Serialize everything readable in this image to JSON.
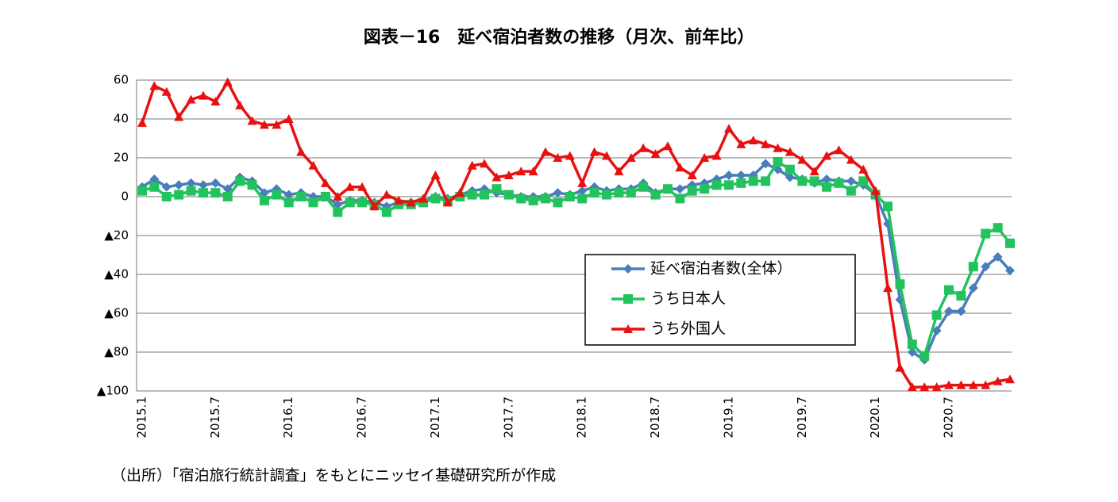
{
  "chart_data": {
    "type": "line",
    "title": "図表－16　延べ宿泊者数の推移（月次、前年比）",
    "note": "（出所）「宿泊旅行統計調査」をもとにニッセイ基礎研究所が作成",
    "categories": [
      "2015.1",
      null,
      null,
      null,
      null,
      null,
      "2015.7",
      null,
      null,
      null,
      null,
      null,
      "2016.1",
      null,
      null,
      null,
      null,
      null,
      "2016.7",
      null,
      null,
      null,
      null,
      null,
      "2017.1",
      null,
      null,
      null,
      null,
      null,
      "2017.7",
      null,
      null,
      null,
      null,
      null,
      "2018.1",
      null,
      null,
      null,
      null,
      null,
      "2018.7",
      null,
      null,
      null,
      null,
      null,
      "2019.1",
      null,
      null,
      null,
      null,
      null,
      "2019.7",
      null,
      null,
      null,
      null,
      null,
      "2020.1",
      null,
      null,
      null,
      null,
      null,
      "2020.7",
      null,
      null,
      null,
      null,
      null
    ],
    "ylim": [
      -100,
      60
    ],
    "yticks": [
      60,
      40,
      20,
      0,
      {
        "value": -20,
        "label": "▲20"
      },
      {
        "value": -40,
        "label": "▲40"
      },
      {
        "value": -60,
        "label": "▲60"
      },
      {
        "value": -80,
        "label": "▲80"
      },
      {
        "value": -100,
        "label": "▲100"
      }
    ],
    "grid": true,
    "legend": "center-right",
    "series": [
      {
        "name": "延べ宿泊者数(全体）",
        "color": "#4a7ebb",
        "marker": "diamond",
        "values": [
          5,
          9,
          5,
          6,
          7,
          6,
          7,
          4,
          10,
          8,
          2,
          4,
          1,
          2,
          0,
          0,
          -4,
          -2,
          -2,
          -3,
          -5,
          -3,
          -3,
          -2,
          0,
          -1,
          1,
          3,
          4,
          2,
          1,
          0,
          0,
          0,
          2,
          1,
          3,
          5,
          3,
          4,
          4,
          7,
          2,
          4,
          4,
          6,
          7,
          9,
          11,
          11,
          11,
          17,
          14,
          10,
          9,
          7,
          9,
          8,
          8,
          6,
          1,
          -14,
          -53,
          -80,
          -84,
          -69,
          -59,
          -59,
          -47,
          -36,
          -31,
          -38
        ]
      },
      {
        "name": "うち日本人",
        "color": "#22c35e",
        "marker": "square",
        "values": [
          3,
          5,
          0,
          1,
          3,
          2,
          2,
          0,
          8,
          6,
          -2,
          1,
          -3,
          0,
          -3,
          0,
          -8,
          -3,
          -3,
          -4,
          -8,
          -4,
          -4,
          -3,
          -1,
          -2,
          0,
          1,
          1,
          4,
          1,
          -1,
          -2,
          -1,
          -3,
          0,
          -1,
          2,
          1,
          2,
          2,
          5,
          1,
          4,
          -1,
          3,
          4,
          6,
          6,
          7,
          8,
          8,
          18,
          14,
          8,
          8,
          5,
          7,
          3,
          8,
          1,
          -5,
          -45,
          -76,
          -82,
          -61,
          -48,
          -51,
          -36,
          -19,
          -16,
          -24
        ]
      },
      {
        "name": "うち外国人",
        "color": "#e81010",
        "marker": "triangle",
        "values": [
          38,
          57,
          54,
          41,
          50,
          52,
          49,
          59,
          47,
          39,
          37,
          37,
          40,
          23,
          16,
          7,
          0,
          5,
          5,
          -5,
          1,
          -2,
          -3,
          -1,
          11,
          -3,
          2,
          16,
          17,
          10,
          11,
          13,
          13,
          23,
          20,
          21,
          7,
          23,
          21,
          13,
          20,
          25,
          22,
          26,
          15,
          11,
          20,
          21,
          35,
          27,
          29,
          27,
          25,
          23,
          19,
          13,
          21,
          24,
          19,
          14,
          3,
          -47,
          -88,
          -98,
          -98,
          -98,
          -97,
          -97,
          -97,
          -97,
          -95,
          -94
        ]
      }
    ]
  }
}
